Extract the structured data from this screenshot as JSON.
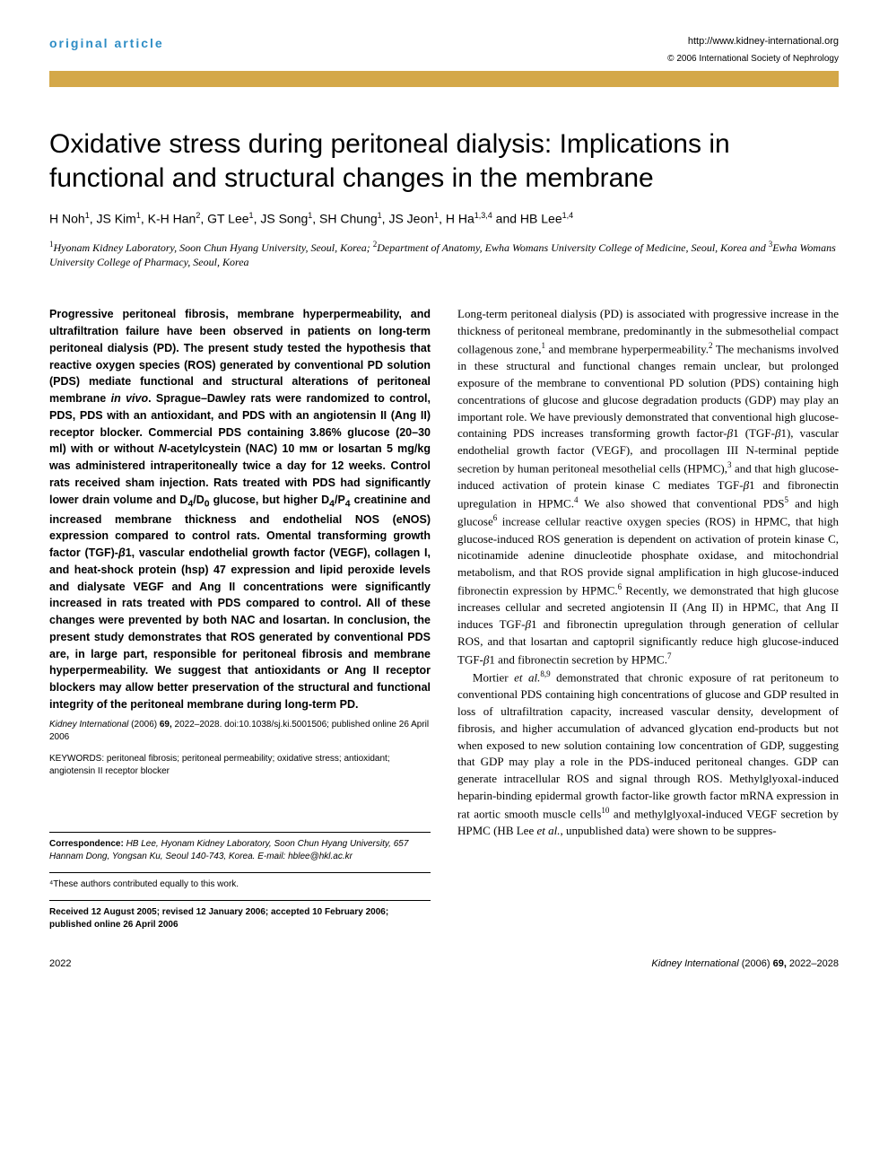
{
  "header": {
    "article_type": "original article",
    "article_type_color": "#2e8dc5",
    "journal_url": "http://www.kidney-international.org",
    "copyright": "© 2006 International Society of Nephrology",
    "gold_bar_color": "#d4a849"
  },
  "title": "Oxidative stress during peritoneal dialysis: Implications in functional and structural changes in the membrane",
  "authors_html": "H Noh<sup>1</sup>, JS Kim<sup>1</sup>, K-H Han<sup>2</sup>, GT Lee<sup>1</sup>, JS Song<sup>1</sup>, SH Chung<sup>1</sup>, JS Jeon<sup>1</sup>, H Ha<sup>1,3,4</sup> and HB Lee<sup>1,4</sup>",
  "affiliations_html": "<sup>1</sup>Hyonam Kidney Laboratory, Soon Chun Hyang University, Seoul, Korea; <sup>2</sup>Department of Anatomy, Ewha Womans University College of Medicine, Seoul, Korea and <sup>3</sup>Ewha Womans University College of Pharmacy, Seoul, Korea",
  "abstract_html": "Progressive peritoneal fibrosis, membrane hyperpermeability, and ultrafiltration failure have been observed in patients on long-term peritoneal dialysis (PD). The present study tested the hypothesis that reactive oxygen species (ROS) generated by conventional PD solution (PDS) mediate functional and structural alterations of peritoneal membrane <i>in vivo</i>. Sprague–Dawley rats were randomized to control, PDS, PDS with an antioxidant, and PDS with an angiotensin II (Ang II) receptor blocker. Commercial PDS containing 3.86% glucose (20–30 ml) with or without <i>N</i>-acetylcystein (NAC) 10 mᴍ or losartan 5 mg/kg was administered intraperitoneally twice a day for 12 weeks. Control rats received sham injection. Rats treated with PDS had significantly lower drain volume and D<sub>4</sub>/D<sub>0</sub> glucose, but higher D<sub>4</sub>/P<sub>4</sub> creatinine and increased membrane thickness and endothelial NOS (eNOS) expression compared to control rats. Omental transforming growth factor (TGF)-<i>β</i>1, vascular endothelial growth factor (VEGF), collagen I, and heat-shock protein (hsp) 47 expression and lipid peroxide levels and dialysate VEGF and Ang II concentrations were significantly increased in rats treated with PDS compared to control. All of these changes were prevented by both NAC and losartan. In conclusion, the present study demonstrates that ROS generated by conventional PDS are, in large part, responsible for peritoneal fibrosis and membrane hyperpermeability. We suggest that antioxidants or Ang II receptor blockers may allow better preservation of the structural and functional integrity of the peritoneal membrane during long-term PD.",
  "citation_html": "<i>Kidney International</i> (2006) <b>69,</b> 2022–2028. doi:10.1038/sj.ki.5001506; published online 26 April 2006",
  "keywords": "KEYWORDS: peritoneal fibrosis; peritoneal permeability; oxidative stress; antioxidant; angiotensin II receptor blocker",
  "correspondence": {
    "label": "Correspondence:",
    "text": "HB Lee, Hyonam Kidney Laboratory, Soon Chun Hyang University, 657 Hannam Dong, Yongsan Ku, Seoul 140-743, Korea. E-mail: hblee@hkl.ac.kr"
  },
  "contrib_note": "⁴These authors contributed equally to this work.",
  "dates": "Received 12 August 2005; revised 12 January 2006; accepted 10 February 2006; published online 26 April 2006",
  "body_p1_html": "Long-term peritoneal dialysis (PD) is associated with progressive increase in the thickness of peritoneal membrane, predominantly in the submesothelial compact collagenous zone,<sup>1</sup> and membrane hyperpermeability.<sup>2</sup> The mechanisms involved in these structural and functional changes remain unclear, but prolonged exposure of the membrane to conventional PD solution (PDS) containing high concentrations of glucose and glucose degradation products (GDP) may play an important role. We have previously demonstrated that conventional high glucose-containing PDS increases transforming growth factor-<i>β</i>1 (TGF-<i>β</i>1), vascular endothelial growth factor (VEGF), and procollagen III N-terminal peptide secretion by human peritoneal mesothelial cells (HPMC),<sup>3</sup> and that high glucose-induced activation of protein kinase C mediates TGF-<i>β</i>1 and fibronectin upregulation in HPMC.<sup>4</sup> We also showed that conventional PDS<sup>5</sup> and high glucose<sup>6</sup> increase cellular reactive oxygen species (ROS) in HPMC, that high glucose-induced ROS generation is dependent on activation of protein kinase C, nicotinamide adenine dinucleotide phosphate oxidase, and mitochondrial metabolism, and that ROS provide signal amplification in high glucose-induced fibronectin expression by HPMC.<sup>6</sup> Recently, we demonstrated that high glucose increases cellular and secreted angiotensin II (Ang II) in HPMC, that Ang II induces TGF-<i>β</i>1 and fibronectin upregulation through generation of cellular ROS, and that losartan and captopril significantly reduce high glucose-induced TGF-<i>β</i>1 and fibronectin secretion by HPMC.<sup>7</sup>",
  "body_p2_html": "Mortier <i>et al.</i><sup>8,9</sup> demonstrated that chronic exposure of rat peritoneum to conventional PDS containing high concentrations of glucose and GDP resulted in loss of ultrafiltration capacity, increased vascular density, development of fibrosis, and higher accumulation of advanced glycation end-products but not when exposed to new solution containing low concentration of GDP, suggesting that GDP may play a role in the PDS-induced peritoneal changes. GDP can generate intracellular ROS and signal through ROS. Methylglyoxal-induced heparin-binding epidermal growth factor-like growth factor mRNA expression in rat aortic smooth muscle cells<sup>10</sup> and methylglyoxal-induced VEGF secretion by HPMC (HB Lee <i>et al.</i>, unpublished data) were shown to be suppres-",
  "footer": {
    "page": "2022",
    "journal_ref_html": "<i>Kidney International</i> (2006) <b>69,</b> 2022–2028"
  }
}
